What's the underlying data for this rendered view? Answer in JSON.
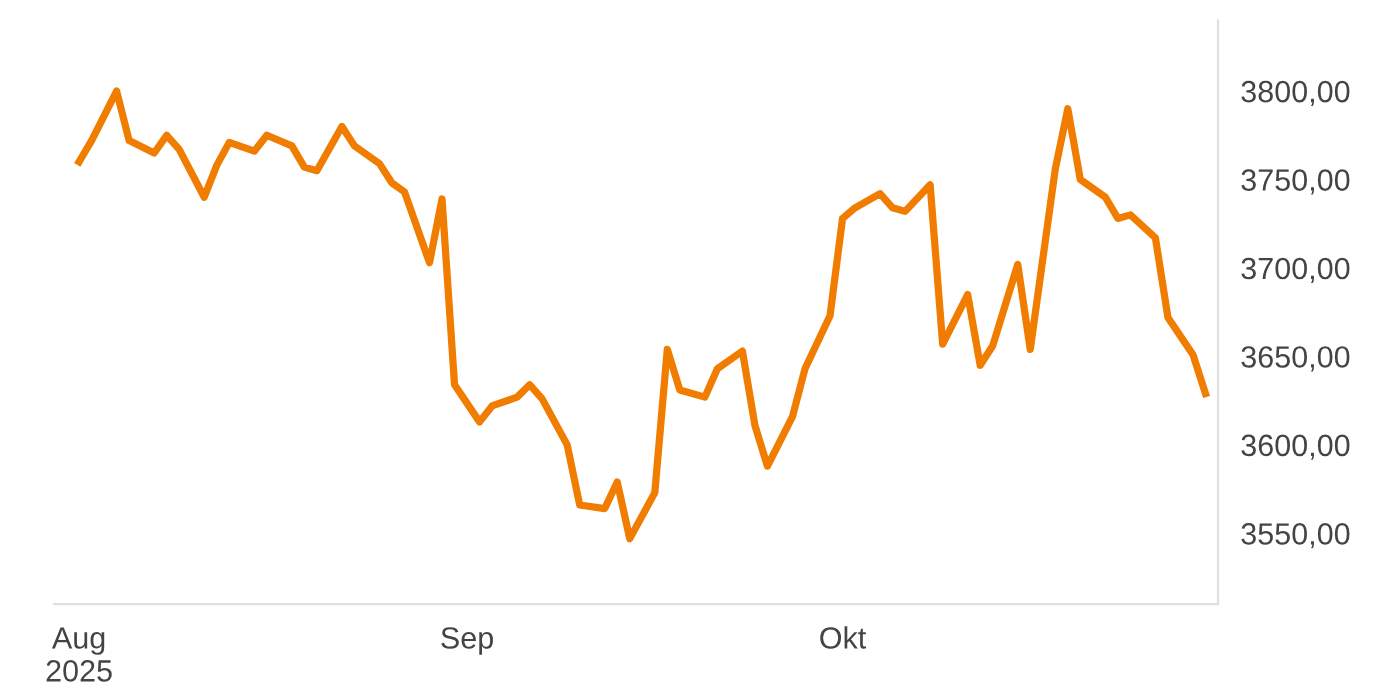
{
  "chart_data": {
    "type": "line",
    "x": [
      "2025-08-01",
      "2025-08-02",
      "2025-08-04",
      "2025-08-05",
      "2025-08-07",
      "2025-08-08",
      "2025-08-09",
      "2025-08-11",
      "2025-08-12",
      "2025-08-13",
      "2025-08-15",
      "2025-08-16",
      "2025-08-18",
      "2025-08-19",
      "2025-08-20",
      "2025-08-22",
      "2025-08-23",
      "2025-08-25",
      "2025-08-26",
      "2025-08-27",
      "2025-08-29",
      "2025-08-30",
      "2025-08-31",
      "2025-09-02",
      "2025-09-03",
      "2025-09-05",
      "2025-09-06",
      "2025-09-07",
      "2025-09-09",
      "2025-09-10",
      "2025-09-12",
      "2025-09-13",
      "2025-09-14",
      "2025-09-16",
      "2025-09-17",
      "2025-09-18",
      "2025-09-20",
      "2025-09-21",
      "2025-09-23",
      "2025-09-24",
      "2025-09-25",
      "2025-09-27",
      "2025-09-28",
      "2025-09-30",
      "2025-10-01",
      "2025-10-02",
      "2025-10-04",
      "2025-10-05",
      "2025-10-06",
      "2025-10-08",
      "2025-10-09",
      "2025-10-11",
      "2025-10-12",
      "2025-10-13",
      "2025-10-15",
      "2025-10-16",
      "2025-10-18",
      "2025-10-19",
      "2025-10-20",
      "2025-10-22",
      "2025-10-23",
      "2025-10-24",
      "2025-10-26",
      "2025-10-27",
      "2025-10-29",
      "2025-10-30"
    ],
    "series": [
      {
        "color": "#f07c00",
        "values": [
          3760,
          3772,
          3800,
          3772,
          3765,
          3775,
          3767,
          3740,
          3758,
          3771,
          3766,
          3775,
          3769,
          3757,
          3755,
          3780,
          3769,
          3759,
          3748,
          3743,
          3703,
          3739,
          3634,
          3613,
          3622,
          3627,
          3634,
          3626,
          3600,
          3566,
          3564,
          3579,
          3547,
          3573,
          3654,
          3631,
          3627,
          3643,
          3653,
          3611,
          3588,
          3616,
          3643,
          3673,
          3728,
          3734,
          3742,
          3734,
          3732,
          3747,
          3657,
          3685,
          3645,
          3656,
          3702,
          3654,
          3756,
          3790,
          3750,
          3740,
          3728,
          3730,
          3717,
          3672,
          3651,
          3629
        ]
      }
    ],
    "xticks": [
      {
        "value": "2025-08-01",
        "label": "Aug\n2025"
      },
      {
        "value": "2025-09-01",
        "label": "Sep"
      },
      {
        "value": "2025-10-01",
        "label": "Okt"
      }
    ],
    "xlim": [
      "2025-07-30",
      "2025-10-31"
    ],
    "ylim": [
      3510,
      3840
    ],
    "yticks": [
      {
        "value": 3550,
        "label": "3550,00"
      },
      {
        "value": 3600,
        "label": "3600,00"
      },
      {
        "value": 3650,
        "label": "3650,00"
      },
      {
        "value": 3700,
        "label": "3700,00"
      },
      {
        "value": 3750,
        "label": "3750,00"
      },
      {
        "value": 3800,
        "label": "3800,00"
      }
    ],
    "grid": false,
    "marker": "none",
    "line_style": "solid"
  }
}
